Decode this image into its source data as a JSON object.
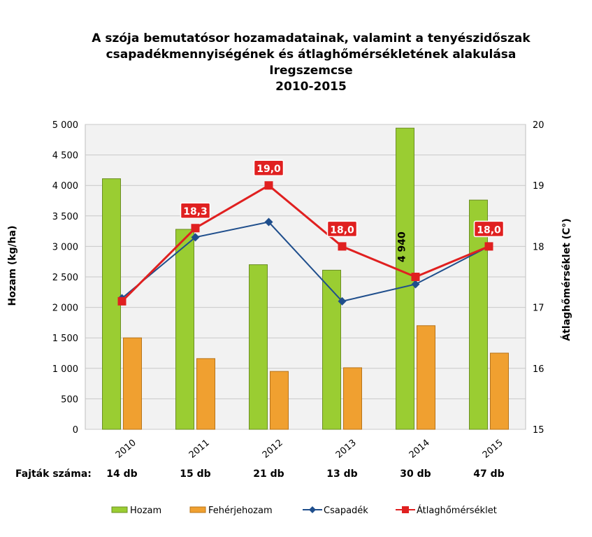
{
  "chart_data": {
    "type": "bar",
    "title": [
      "A szója bemutatósor hozamadatainak, valamint a tenyészidőszak",
      "csapadékmennyiségének és átlaghőmérsékletének alakulása",
      "Iregszemcse",
      "2010-2015"
    ],
    "categories": [
      "2010",
      "2011",
      "2012",
      "2013",
      "2014",
      "2015"
    ],
    "ylabel_left": "Hozam (kg/ha)",
    "ylabel_right": "Átlaghőmérséklet (C°)",
    "yticks_left": [
      "5 000",
      "4 500",
      "4 000",
      "3 500",
      "3 000",
      "2 500",
      "2 000",
      "1 500",
      "1 000",
      "500",
      "0"
    ],
    "yticks_right": [
      "20",
      "19",
      "18",
      "17",
      "16",
      "15"
    ],
    "ylim_left": [
      0,
      5000
    ],
    "ylim_right": [
      15,
      20
    ],
    "grid": true,
    "legend_position": "bottom",
    "series": [
      {
        "name": "Hozam",
        "axis": "left",
        "kind": "bar",
        "color": "#9ACD32",
        "values": [
          4110,
          3280,
          2700,
          2610,
          4940,
          3760
        ]
      },
      {
        "name": "Fehérjehozam",
        "axis": "left",
        "kind": "bar",
        "color": "#F0A030",
        "values": [
          1500,
          1160,
          950,
          1010,
          1700,
          1250
        ]
      },
      {
        "name": "Csapadék",
        "axis": "left",
        "kind": "line",
        "color": "#1F4E8C",
        "values": [
          2150,
          3150,
          3400,
          2100,
          2380,
          3000
        ]
      },
      {
        "name": "Átlaghőmérséklet",
        "axis": "right",
        "kind": "line",
        "color": "#E02020",
        "values": [
          17.1,
          18.3,
          19.0,
          18.0,
          17.5,
          18.0
        ]
      }
    ],
    "data_labels": {
      "Hozam": [
        "",
        "",
        "",
        "",
        "4 940",
        ""
      ],
      "Átlaghőmérséklet": [
        "",
        "18,3",
        "19,0",
        "18,0",
        "",
        "18,0"
      ]
    }
  },
  "counts": {
    "label": "Fajták száma:",
    "values": [
      "14 db",
      "15 db",
      "21 db",
      "13 db",
      "30 db",
      "47 db"
    ]
  }
}
